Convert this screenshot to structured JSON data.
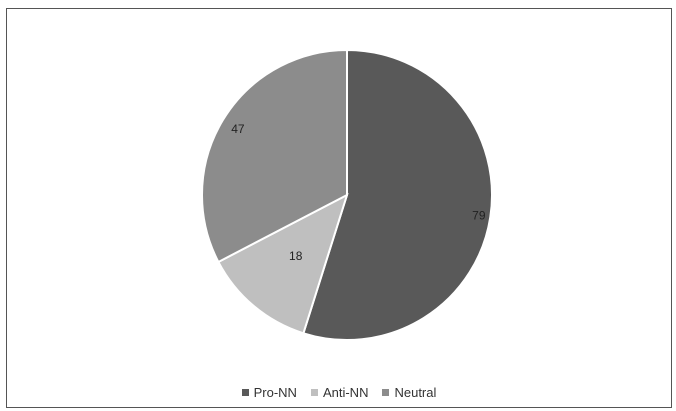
{
  "chart_data": {
    "type": "pie",
    "categories": [
      "Pro-NN",
      "Anti-NN",
      "Neutral"
    ],
    "values": [
      79,
      18,
      47
    ],
    "colors": [
      "#595959",
      "#bfbfbf",
      "#8c8c8c"
    ],
    "data_labels": [
      "79",
      "18",
      "47"
    ],
    "legend_position": "bottom",
    "title": ""
  }
}
